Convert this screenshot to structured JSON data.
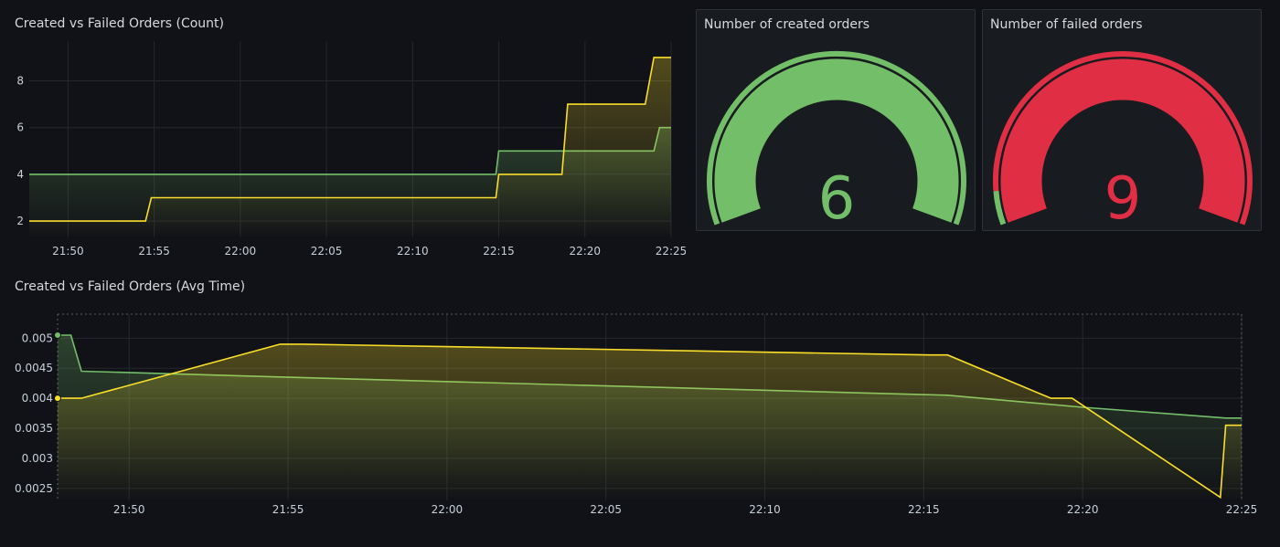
{
  "panels": {
    "count_chart_title": "Created vs Failed Orders (Count)",
    "avg_time_chart_title": "Created vs Failed Orders (Avg Time)",
    "created_gauge_title": "Number of created orders",
    "failed_gauge_title": "Number of failed orders"
  },
  "colors": {
    "background": "#111217",
    "panel": "#181b1f",
    "created": "#73bf69",
    "failed_line": "#fade2a",
    "failed_gauge": "#e02f44",
    "grid": "#262a30"
  },
  "chart_data": [
    {
      "type": "line",
      "title": "Created vs Failed Orders (Count)",
      "x_ticks": [
        "21:50",
        "21:55",
        "22:00",
        "22:05",
        "22:10",
        "22:15",
        "22:20",
        "22:25"
      ],
      "x_range": [
        "21:47:45",
        "22:25"
      ],
      "y_ticks": [
        2,
        4,
        6,
        8
      ],
      "ylim": [
        1.3,
        9.7
      ],
      "series": [
        {
          "color": "#73bf69",
          "points": [
            [
              "21:47:45",
              4
            ],
            [
              "22:14:50",
              4
            ],
            [
              "22:15",
              5
            ],
            [
              "22:24",
              5
            ],
            [
              "22:24:20",
              6
            ],
            [
              "22:25",
              6
            ]
          ]
        },
        {
          "color": "#fade2a",
          "points": [
            [
              "21:47:45",
              2
            ],
            [
              "21:54:30",
              2
            ],
            [
              "21:54:50",
              3
            ],
            [
              "22:14:50",
              3
            ],
            [
              "22:15",
              4
            ],
            [
              "22:18:40",
              4
            ],
            [
              "22:19",
              7
            ],
            [
              "22:23:30",
              7
            ],
            [
              "22:24",
              9
            ],
            [
              "22:25",
              9
            ]
          ]
        }
      ]
    },
    {
      "type": "line",
      "title": "Created vs Failed Orders (Avg Time)",
      "x_ticks": [
        "21:50",
        "21:55",
        "22:00",
        "22:05",
        "22:10",
        "22:15",
        "22:20",
        "22:25"
      ],
      "x_range": [
        "21:47:45",
        "22:25"
      ],
      "y_ticks": [
        "0.0025",
        "0.003",
        "0.0035",
        "0.004",
        "0.0045",
        "0.005"
      ],
      "ylim": [
        0.0023,
        0.0054
      ],
      "series": [
        {
          "color": "#73bf69",
          "points": [
            [
              "21:47:45",
              0.00505
            ],
            [
              "21:48:10",
              0.00505
            ],
            [
              "21:48:30",
              0.00445
            ],
            [
              "21:55",
              0.00435
            ],
            [
              "22:15:45",
              0.00405
            ],
            [
              "22:20",
              0.00385
            ],
            [
              "22:24:30",
              0.00367
            ],
            [
              "22:25",
              0.00367
            ]
          ]
        },
        {
          "color": "#fade2a",
          "points": [
            [
              "21:47:45",
              0.004
            ],
            [
              "21:48:30",
              0.004
            ],
            [
              "21:54:45",
              0.0049
            ],
            [
              "21:55:30",
              0.0049
            ],
            [
              "22:15:10",
              0.00472
            ],
            [
              "22:15:45",
              0.00472
            ],
            [
              "22:19",
              0.004
            ],
            [
              "22:19:40",
              0.004
            ],
            [
              "22:24:20",
              0.00235
            ],
            [
              "22:24:30",
              0.00355
            ],
            [
              "22:25",
              0.00355
            ]
          ]
        }
      ]
    }
  ],
  "gauges": [
    {
      "value": "6",
      "numeric_value": 6,
      "color": "#73bf69",
      "threshold_base_fraction": 0
    },
    {
      "value": "9",
      "numeric_value": 9,
      "color": "#e02f44",
      "threshold_base_fraction": 0.07
    }
  ]
}
